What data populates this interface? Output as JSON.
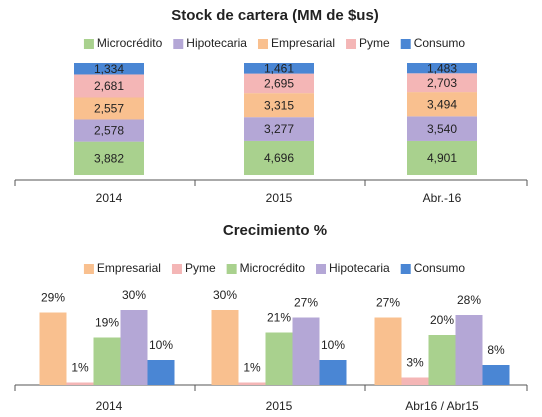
{
  "chart_data": [
    {
      "type": "bar",
      "stacked": "percent",
      "title": "Stock de cartera (MM de $us)",
      "categories": [
        "2014",
        "2015",
        "Abr.-16"
      ],
      "series": [
        {
          "name": "Microcrédito",
          "color": "#a9d18e",
          "values": [
            3882,
            4696,
            4901
          ],
          "value_labels": [
            "3,882",
            "4,696",
            "4,901"
          ]
        },
        {
          "name": "Hipotecaria",
          "color": "#b4a7d6",
          "values": [
            2578,
            3277,
            3540
          ],
          "value_labels": [
            "2,578",
            "3,277",
            "3,540"
          ]
        },
        {
          "name": "Empresarial",
          "color": "#f9c08f",
          "values": [
            2557,
            3315,
            3494
          ],
          "value_labels": [
            "2,557",
            "3,315",
            "3,494"
          ]
        },
        {
          "name": "Pyme",
          "color": "#f4b6b6",
          "values": [
            2681,
            2695,
            2703
          ],
          "value_labels": [
            "2,681",
            "2,695",
            "2,703"
          ]
        },
        {
          "name": "Consumo",
          "color": "#4a86d4",
          "values": [
            1334,
            1461,
            1483
          ],
          "value_labels": [
            "1,334",
            "1,461",
            "1,483"
          ]
        }
      ]
    },
    {
      "type": "bar",
      "title": "Crecimiento %",
      "categories": [
        "2014",
        "2015",
        "Abr16 / Abr15"
      ],
      "series": [
        {
          "name": "Empresarial",
          "color": "#f9c08f",
          "values": [
            29,
            30,
            27
          ],
          "value_labels": [
            "29%",
            "30%",
            "27%"
          ]
        },
        {
          "name": "Pyme",
          "color": "#f4b6b6",
          "values": [
            1,
            1,
            3
          ],
          "value_labels": [
            "1%",
            "1%",
            "3%"
          ]
        },
        {
          "name": "Microcrédito",
          "color": "#a9d18e",
          "values": [
            19,
            21,
            20
          ],
          "value_labels": [
            "19%",
            "21%",
            "20%"
          ]
        },
        {
          "name": "Hipotecaria",
          "color": "#b4a7d6",
          "values": [
            30,
            27,
            28
          ],
          "value_labels": [
            "30%",
            "27%",
            "28%"
          ]
        },
        {
          "name": "Consumo",
          "color": "#4a86d4",
          "values": [
            10,
            10,
            8
          ],
          "value_labels": [
            "10%",
            "10%",
            "8%"
          ]
        }
      ]
    }
  ]
}
